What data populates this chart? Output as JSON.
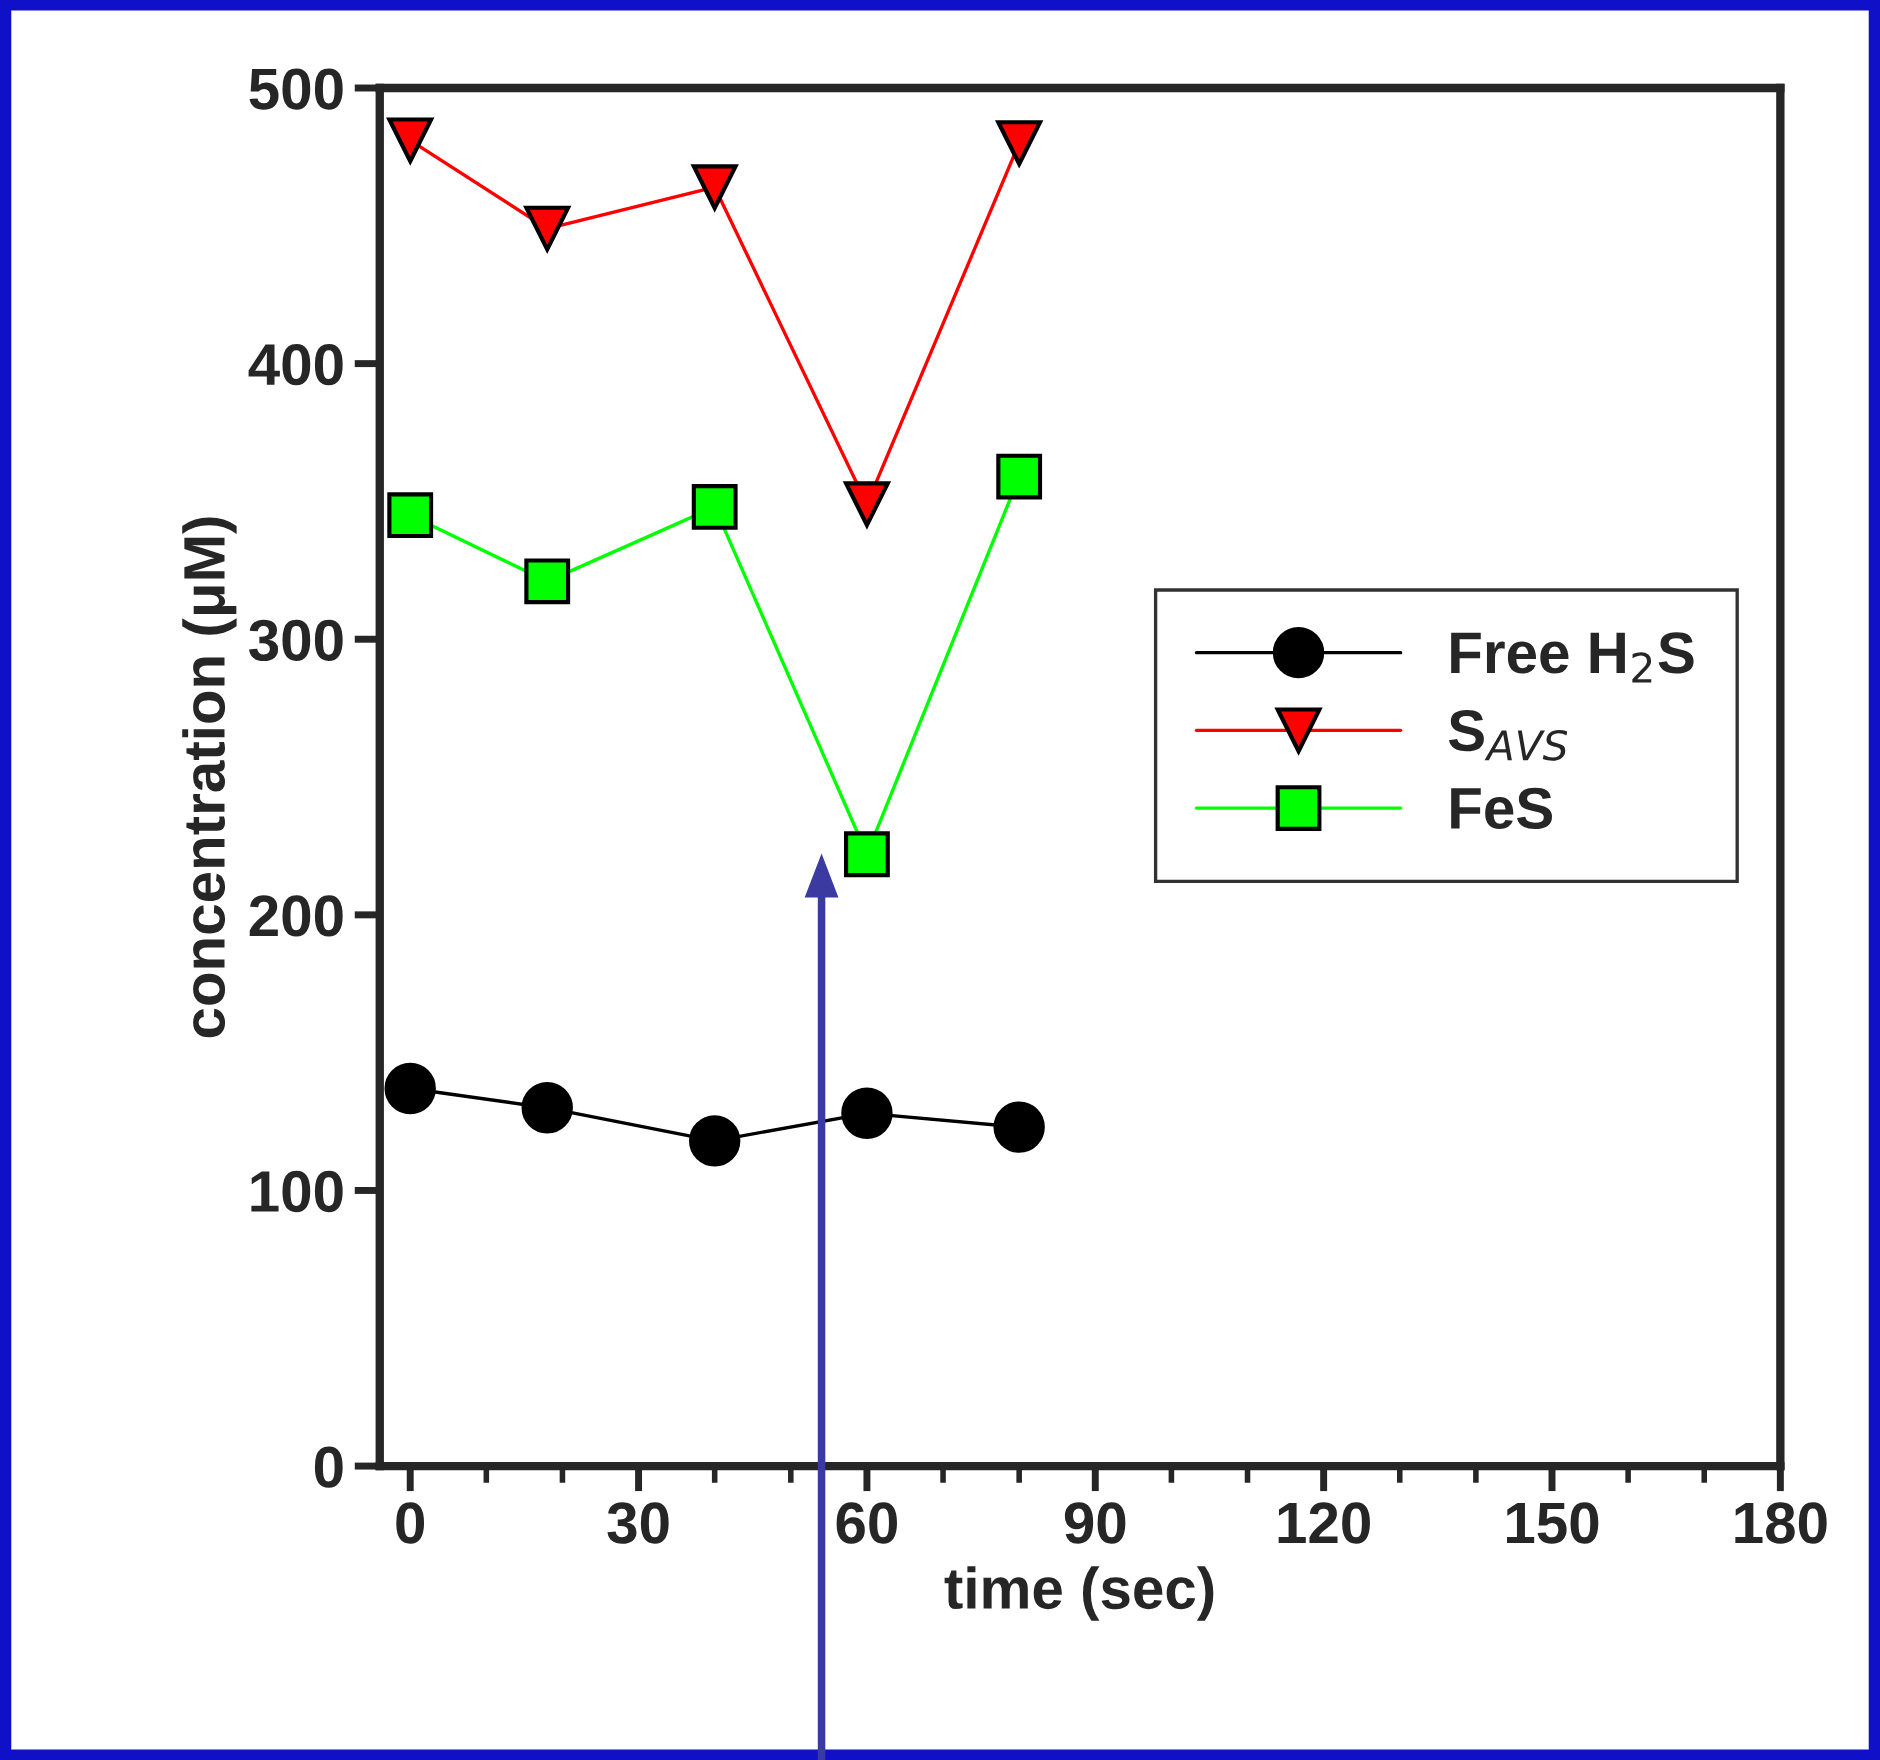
{
  "chart_data": {
    "type": "line",
    "xlabel": "time (sec)",
    "ylabel": "concentration (μM)",
    "xlim": [
      -4,
      180
    ],
    "ylim": [
      0,
      500
    ],
    "xticks": [
      0,
      30,
      60,
      90,
      120,
      150,
      180
    ],
    "yticks": [
      0,
      100,
      200,
      300,
      400,
      500
    ],
    "grid": false,
    "legend": "right",
    "line_style": "solid",
    "series": [
      {
        "name": "Free H$_{2}$S",
        "color": "#000000",
        "marker": "circle",
        "x": [
          0,
          18,
          40,
          60,
          80
        ],
        "values": [
          137,
          130,
          118,
          128,
          123
        ]
      },
      {
        "name": "S$_{AVS}$",
        "color": "#ff0000",
        "marker": "triangle",
        "x": [
          0,
          18,
          40,
          60,
          80
        ],
        "values": [
          481,
          449,
          464,
          349,
          480
        ]
      },
      {
        "name": "FeS",
        "color": "#00ff00",
        "marker": "square",
        "x": [
          0,
          18,
          40,
          60,
          80
        ],
        "values": [
          345,
          321,
          348,
          222,
          359
        ]
      }
    ]
  }
}
